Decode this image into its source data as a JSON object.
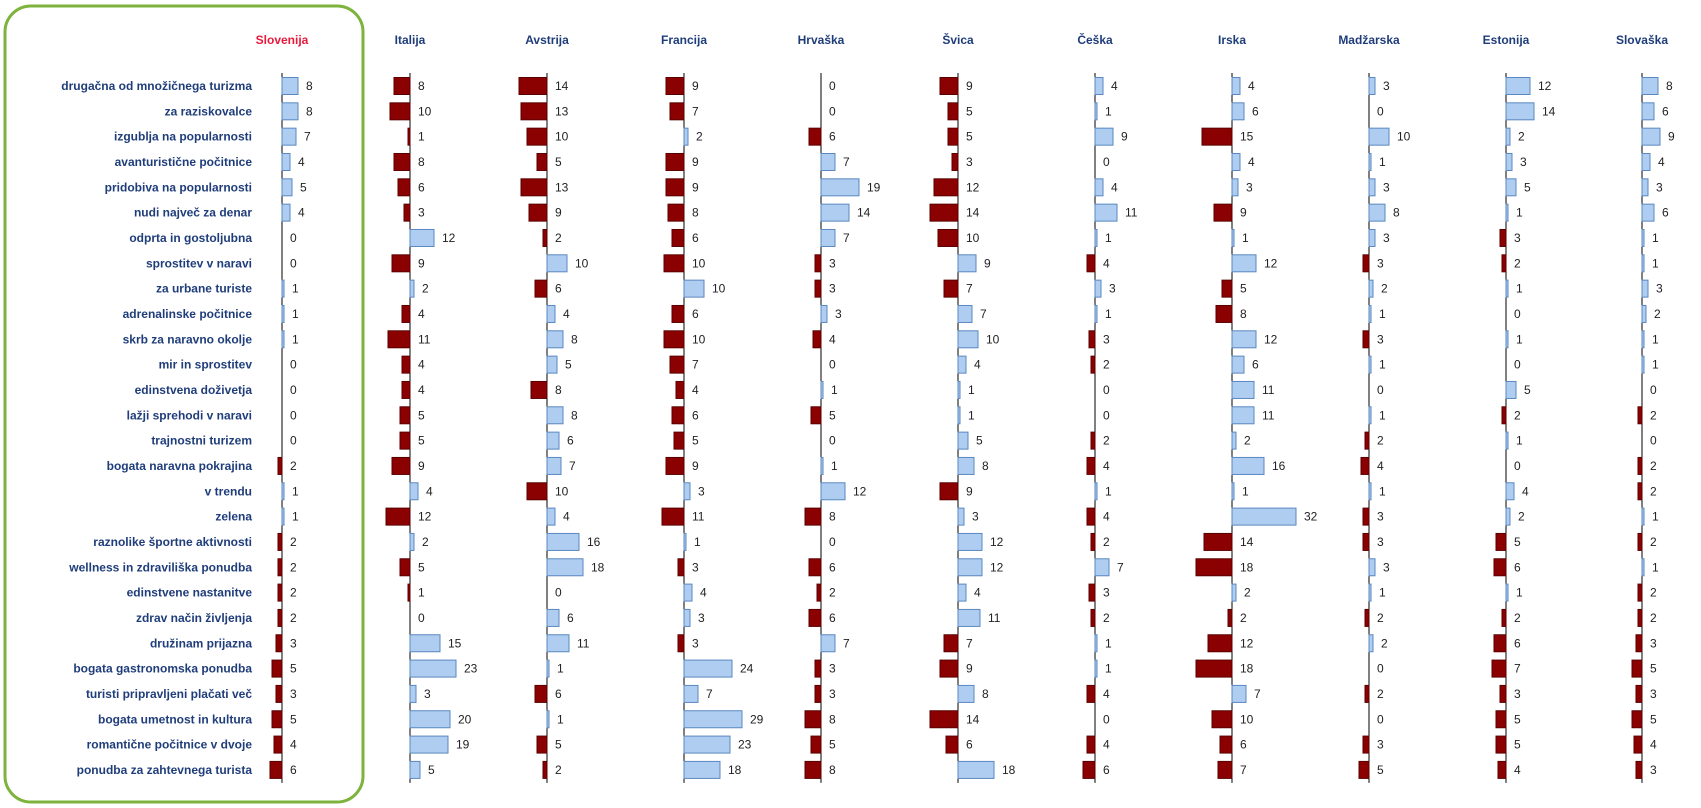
{
  "chart_data": {
    "type": "bar",
    "orientation": "horizontal",
    "layout": "small-multiples",
    "categories": [
      "drugačna od množičnega turizma",
      "za raziskovalce",
      "izgublja na popularnosti",
      "avanturistične počitnice",
      "pridobiva na popularnosti",
      "nudi največ za denar",
      "odprta in gostoljubna",
      "sprostitev v naravi",
      "za urbane turiste",
      "adrenalinske počitnice",
      "skrb za naravno okolje",
      "mir in sprostitev",
      "edinstvena doživetja",
      "lažji sprehodi v naravi",
      "trajnostni turizem",
      "bogata naravna pokrajina",
      "v trendu",
      "zelena",
      "raznolike športne aktivnosti",
      "wellness in zdraviliška ponudba",
      "edinstvene nastanitve",
      "zdrav način življenja",
      "družinam prijazna",
      "bogata gastronomska ponudba",
      "turisti pripravljeni plačati več",
      "bogata umetnost in kultura",
      "romantične počitnice v dvoje",
      "ponudba za zahtevnega turista"
    ],
    "series": [
      {
        "name": "Slovenija",
        "values": [
          8,
          8,
          7,
          4,
          5,
          4,
          0,
          0,
          1,
          1,
          1,
          0,
          0,
          0,
          0,
          -2,
          1,
          1,
          -2,
          -2,
          -2,
          -2,
          -3,
          -5,
          -3,
          -5,
          -4,
          -6
        ]
      },
      {
        "name": "Italija",
        "values": [
          -8,
          -10,
          -1,
          -8,
          -6,
          -3,
          12,
          -9,
          2,
          -4,
          -11,
          -4,
          -4,
          -5,
          -5,
          -9,
          4,
          -12,
          2,
          -5,
          -1,
          0,
          15,
          23,
          3,
          20,
          19,
          5
        ]
      },
      {
        "name": "Avstrija",
        "values": [
          -14,
          -13,
          -10,
          -5,
          -13,
          -9,
          -2,
          10,
          -6,
          4,
          8,
          5,
          -8,
          8,
          6,
          7,
          -10,
          4,
          16,
          18,
          0,
          6,
          11,
          1,
          -6,
          1,
          -5,
          -2
        ]
      },
      {
        "name": "Francija",
        "values": [
          -9,
          -7,
          2,
          -9,
          -9,
          -8,
          -6,
          -10,
          10,
          -6,
          -10,
          -7,
          -4,
          -6,
          -5,
          -9,
          3,
          -11,
          1,
          -3,
          4,
          3,
          -3,
          24,
          7,
          29,
          23,
          18
        ]
      },
      {
        "name": "Hrvaška",
        "values": [
          0,
          0,
          -6,
          7,
          19,
          14,
          7,
          -3,
          -3,
          3,
          -4,
          0,
          1,
          -5,
          0,
          1,
          12,
          -8,
          0,
          -6,
          -2,
          -6,
          7,
          -3,
          -3,
          -8,
          -5,
          -8
        ]
      },
      {
        "name": "Švica",
        "values": [
          -9,
          -5,
          -5,
          -3,
          -12,
          -14,
          -10,
          9,
          -7,
          7,
          10,
          4,
          1,
          1,
          5,
          8,
          -9,
          3,
          12,
          12,
          4,
          11,
          -7,
          -9,
          8,
          -14,
          -6,
          18
        ]
      },
      {
        "name": "Češka",
        "values": [
          4,
          1,
          9,
          0,
          4,
          11,
          1,
          -4,
          3,
          1,
          -3,
          -2,
          0,
          0,
          -2,
          -4,
          1,
          -4,
          -2,
          7,
          -3,
          -2,
          1,
          1,
          -4,
          0,
          -4,
          -6
        ]
      },
      {
        "name": "Irska",
        "values": [
          4,
          6,
          -15,
          4,
          3,
          -9,
          1,
          12,
          -5,
          -8,
          12,
          6,
          11,
          11,
          2,
          16,
          1,
          32,
          -14,
          -18,
          2,
          -2,
          -12,
          -18,
          7,
          -10,
          -6,
          -7
        ]
      },
      {
        "name": "Madžarska",
        "values": [
          3,
          0,
          10,
          1,
          3,
          8,
          3,
          -3,
          2,
          1,
          -3,
          1,
          0,
          1,
          -2,
          -4,
          1,
          -3,
          -3,
          3,
          1,
          -2,
          2,
          0,
          -2,
          0,
          -3,
          -5
        ]
      },
      {
        "name": "Estonija",
        "values": [
          12,
          14,
          2,
          3,
          5,
          1,
          -3,
          -2,
          1,
          0,
          1,
          0,
          5,
          -2,
          1,
          0,
          4,
          2,
          -5,
          -6,
          1,
          -2,
          -6,
          -7,
          -3,
          -5,
          -5,
          -4
        ]
      },
      {
        "name": "Slovaška",
        "values": [
          8,
          6,
          9,
          4,
          3,
          6,
          1,
          1,
          3,
          2,
          1,
          1,
          0,
          -2,
          0,
          -2,
          -2,
          1,
          -2,
          1,
          -2,
          -2,
          -3,
          -5,
          -3,
          -5,
          -4,
          -3
        ]
      }
    ],
    "value_labels": "absolute",
    "highlight_series": "Slovenija",
    "colors": {
      "positive_fill": "#aecdf0",
      "positive_stroke": "#5a88c0",
      "negative_fill": "#8b0000",
      "negative_stroke": "#5a0000",
      "label_color": "#1f3d7a",
      "header_color": "#1f3d7a",
      "highlight_header_color": "#e8193c",
      "highlight_frame_color": "#7db33c",
      "value_color": "#222222",
      "axis_color": "#000000"
    },
    "grid": false,
    "legend": "none"
  }
}
